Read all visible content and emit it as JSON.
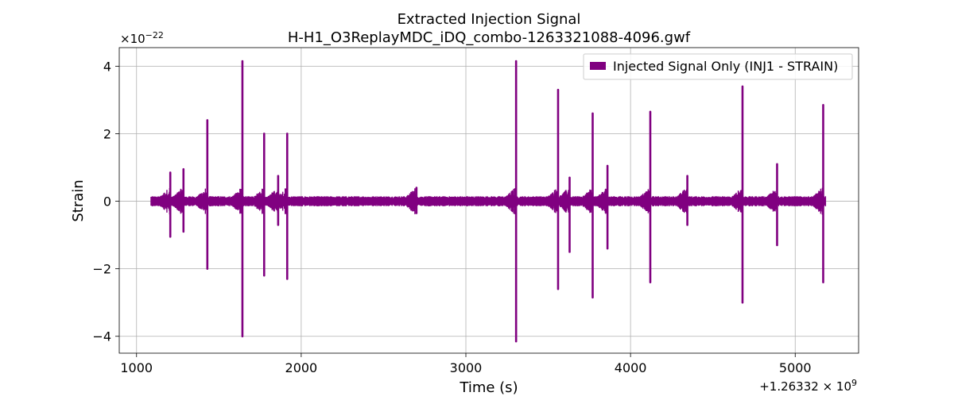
{
  "chart_data": {
    "type": "line",
    "title": "Extracted Injection Signal",
    "subtitle": "H-H1_O3ReplayMDC_iDQ_combo-1263321088-4096.gwf",
    "xlabel": "Time (s)",
    "ylabel": "Strain",
    "x_offset_label": "+1.26332 × 10",
    "x_offset_exponent": "9",
    "y_multiplier_label": "×10",
    "y_multiplier_exponent": "−22",
    "xlim": [
      895,
      5385
    ],
    "ylim": [
      -4.5,
      4.55
    ],
    "x_ticks": [
      1000,
      2000,
      3000,
      4000,
      5000
    ],
    "x_tick_labels": [
      "1000",
      "2000",
      "3000",
      "4000",
      "5000"
    ],
    "y_ticks": [
      -4,
      -2,
      0,
      2,
      4
    ],
    "y_tick_labels": [
      "−4",
      "−2",
      "0",
      "2",
      "4"
    ],
    "grid": true,
    "legend_position": "top-right",
    "color": "#800080",
    "series": [
      {
        "name": "Injected Signal Only (INJ1 - STRAIN)",
        "x_start": 1088,
        "x_end": 5184,
        "baseline_envelope": 0.15,
        "spikes": [
          {
            "x": 1205,
            "max": 0.85,
            "min": -1.05
          },
          {
            "x": 1285,
            "max": 0.95,
            "min": -0.9
          },
          {
            "x": 1430,
            "max": 2.4,
            "min": -2.0
          },
          {
            "x": 1643,
            "max": 4.15,
            "min": -4.0
          },
          {
            "x": 1775,
            "max": 2.0,
            "min": -2.2
          },
          {
            "x": 1860,
            "max": 0.75,
            "min": -0.7
          },
          {
            "x": 1915,
            "max": 2.0,
            "min": -2.3
          },
          {
            "x": 2700,
            "max": 0.4,
            "min": -0.35
          },
          {
            "x": 3305,
            "max": 4.15,
            "min": -4.15
          },
          {
            "x": 3560,
            "max": 3.3,
            "min": -2.6
          },
          {
            "x": 3630,
            "max": 0.7,
            "min": -1.5
          },
          {
            "x": 3770,
            "max": 2.6,
            "min": -2.85
          },
          {
            "x": 3860,
            "max": 1.05,
            "min": -1.4
          },
          {
            "x": 4120,
            "max": 2.65,
            "min": -2.4
          },
          {
            "x": 4345,
            "max": 0.75,
            "min": -0.7
          },
          {
            "x": 4680,
            "max": 3.4,
            "min": -3.0
          },
          {
            "x": 4890,
            "max": 1.1,
            "min": -1.3
          },
          {
            "x": 5170,
            "max": 2.85,
            "min": -2.4
          }
        ]
      }
    ]
  }
}
